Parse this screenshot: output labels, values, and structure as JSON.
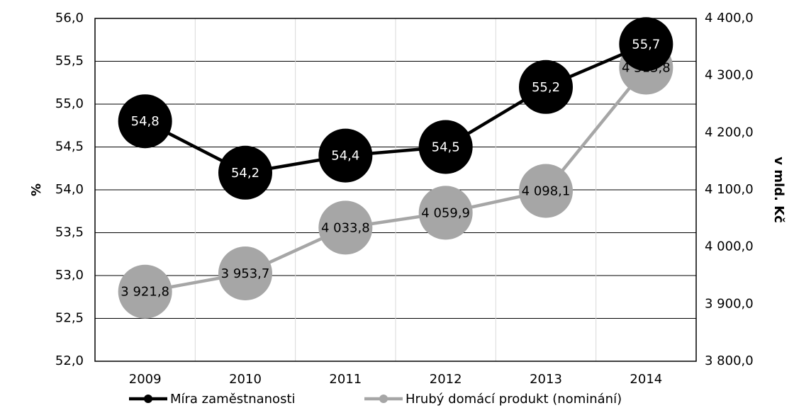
{
  "chart_data": {
    "type": "line",
    "categories": [
      "2009",
      "2010",
      "2011",
      "2012",
      "2013",
      "2014"
    ],
    "series": [
      {
        "name": "Míra zaměstnanosti",
        "axis": "left",
        "values": [
          54.8,
          54.2,
          54.4,
          54.5,
          55.2,
          55.7
        ],
        "labels": [
          "54,8",
          "54,2",
          "54,4",
          "54,5",
          "55,2",
          "55,7"
        ],
        "color": "#000000",
        "label_color": "#ffffff"
      },
      {
        "name": "Hrubý domácí produkt (nominání)",
        "axis": "right",
        "values": [
          3921.8,
          3953.7,
          4033.8,
          4059.9,
          4098.1,
          4313.8
        ],
        "labels": [
          "3 921,8",
          "3 953,7",
          "4 033,8",
          "4 059,9",
          "4 098,1",
          "4 313,8"
        ],
        "color": "#a6a6a6",
        "label_color": "#000000"
      }
    ],
    "y_left": {
      "label": "%",
      "ylim": [
        52.0,
        56.0
      ],
      "ticks": [
        "52,0",
        "52,5",
        "53,0",
        "53,5",
        "54,0",
        "54,5",
        "55,0",
        "55,5",
        "56,0"
      ]
    },
    "y_right": {
      "label": "v mld. Kč",
      "ylim": [
        3800.0,
        4400.0
      ],
      "ticks": [
        "3 800,0",
        "3 900,0",
        "4 000,0",
        "4 100,0",
        "4 200,0",
        "4 300,0",
        "4 400,0"
      ]
    },
    "grid": true,
    "legend": "bottom"
  }
}
